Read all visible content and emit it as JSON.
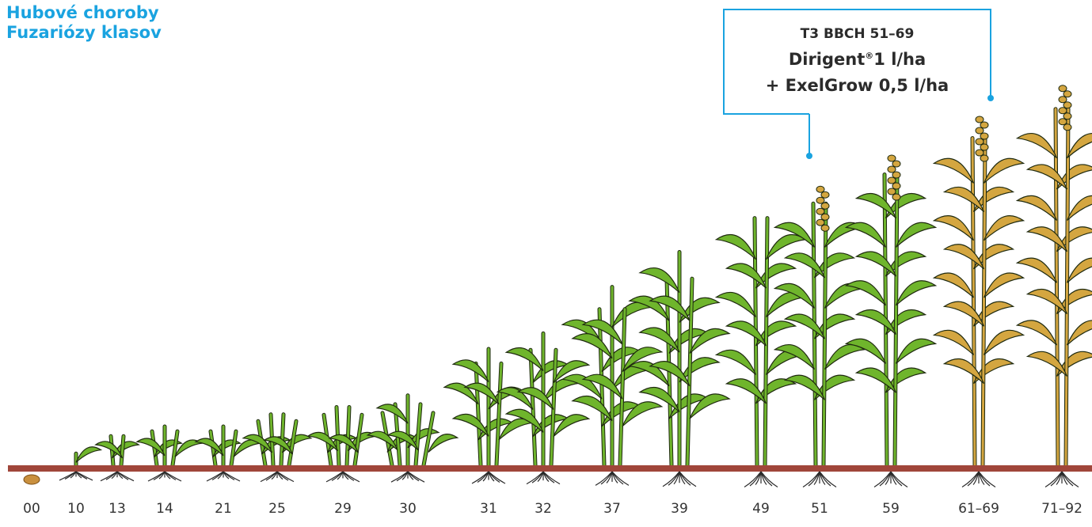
{
  "title": {
    "line1": "Hubové choroby",
    "line2": "Fuzariózy klasov"
  },
  "callout": {
    "stage": "T3 BBCH 51–69",
    "product": "Dirigent",
    "registered": "®",
    "dose": "1 l/ha",
    "additive": "+ ExelGrow 0,5 l/ha"
  },
  "colors": {
    "title": "#1aa3e0",
    "callout_border": "#1aa3e0",
    "ground": "#a0463a",
    "leaf": "#6fb52c",
    "leaf_outline": "#1f2a10",
    "ripe": "#d4a640",
    "root": "#2a2a2a",
    "seed": "#c9903e"
  },
  "stages": [
    {
      "label": "00",
      "type": "seed",
      "height": 0
    },
    {
      "label": "10",
      "type": "green",
      "height": 0.03
    },
    {
      "label": "13",
      "type": "green",
      "height": 0.08
    },
    {
      "label": "14",
      "type": "green",
      "height": 0.1
    },
    {
      "label": "21",
      "type": "green",
      "height": 0.1
    },
    {
      "label": "25",
      "type": "green",
      "height": 0.14
    },
    {
      "label": "29",
      "type": "green",
      "height": 0.16
    },
    {
      "label": "30",
      "type": "green",
      "height": 0.18
    },
    {
      "label": "31",
      "type": "green",
      "height": 0.3
    },
    {
      "label": "32",
      "type": "green",
      "height": 0.34
    },
    {
      "label": "37",
      "type": "green",
      "height": 0.46
    },
    {
      "label": "39",
      "type": "green",
      "height": 0.55
    },
    {
      "label": "49",
      "type": "green",
      "height": 0.68
    },
    {
      "label": "51",
      "type": "heading",
      "height": 0.72
    },
    {
      "label": "59",
      "type": "eared",
      "height": 0.8
    },
    {
      "label": "61–69",
      "type": "ripening",
      "height": 0.9
    },
    {
      "label": "71–92",
      "type": "ripe",
      "height": 0.98
    }
  ]
}
